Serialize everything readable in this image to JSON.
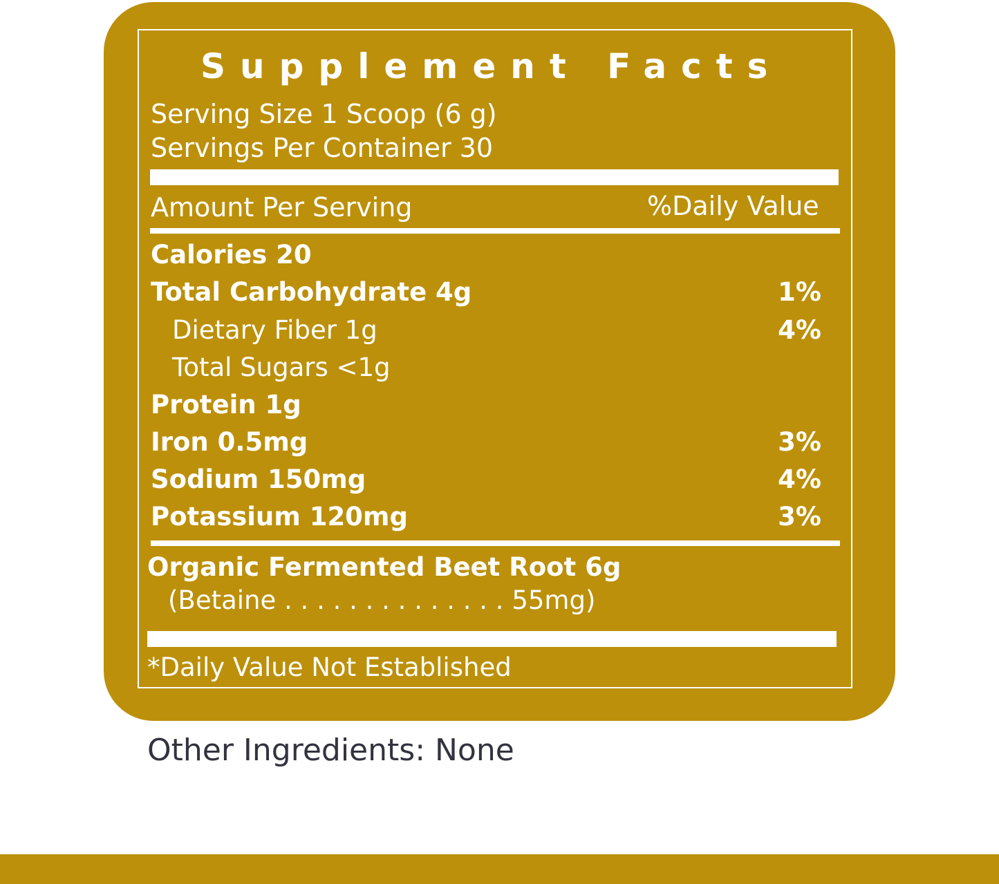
{
  "colors": {
    "gold": "#BC900A",
    "text": "#FFFFFF",
    "other_text": "#33333F"
  },
  "label": {
    "title": "Supplement Facts",
    "serving_size": "Serving Size 1 Scoop (6 g)",
    "servings_per_container": "Servings Per Container 30",
    "amount_per_serving": "Amount Per Serving",
    "daily_value_header": "%Daily Value",
    "nutrients": [
      {
        "name": "Calories   20",
        "dv": ""
      },
      {
        "name": "Total Carbohydrate   4g",
        "dv": "1%"
      },
      {
        "name": "Dietary Fiber    1g",
        "dv": "4%"
      },
      {
        "name": "Total Sugars   <1g",
        "dv": ""
      },
      {
        "name": "Protein   1g",
        "dv": ""
      },
      {
        "name": "Iron   0.5mg",
        "dv": "3%"
      },
      {
        "name": "Sodium   150mg",
        "dv": "4%"
      },
      {
        "name": "Potassium   120mg",
        "dv": "3%"
      }
    ],
    "ingredient": "Organic Fermented Beet Root  6g",
    "ingredient_sub": "(Betaine . . . . . . . . . . . . . . 55mg)",
    "footnote": "*Daily Value Not Established"
  },
  "other_ingredients": "Other Ingredients: None"
}
